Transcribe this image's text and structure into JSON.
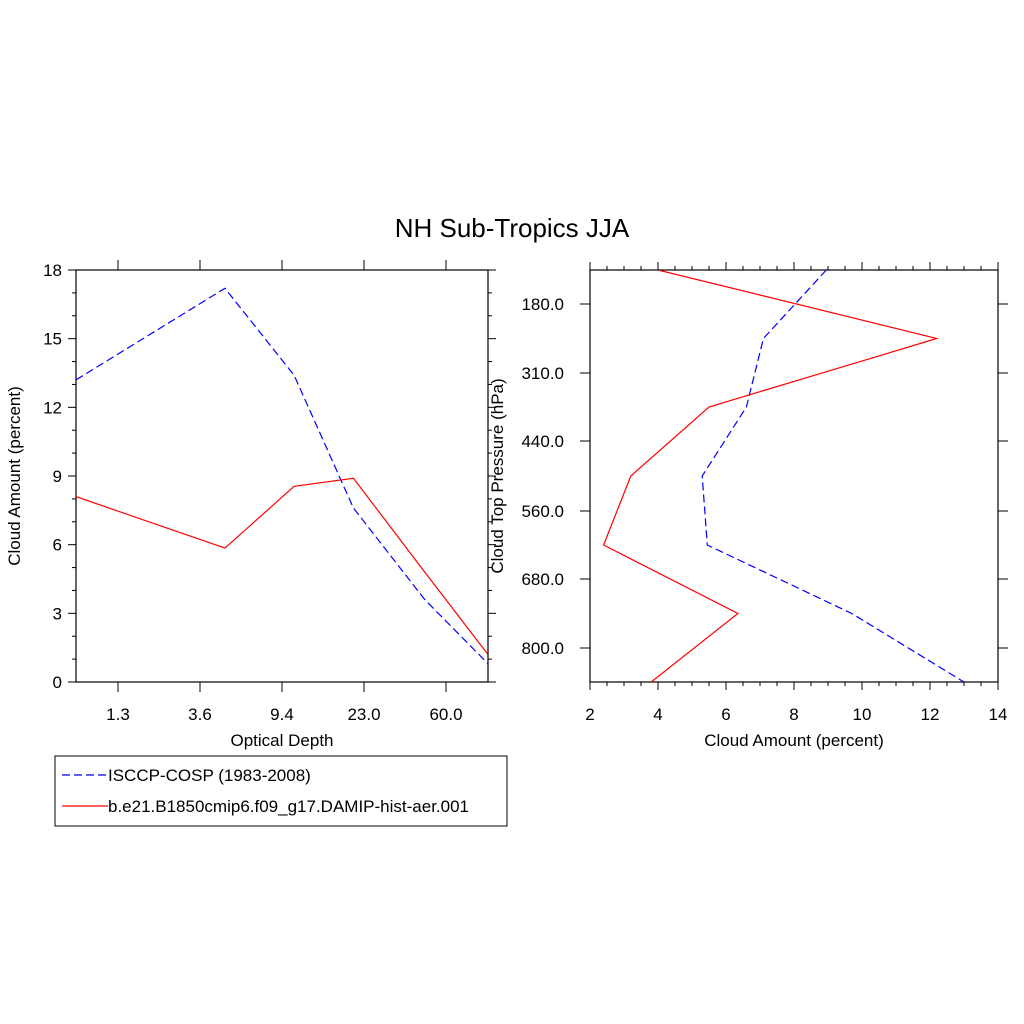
{
  "title": "NH Sub-Tropics JJA",
  "colors": {
    "obs": "#0000ff",
    "model": "#ff0000",
    "axes": "#000000"
  },
  "legend": {
    "entries": [
      {
        "label": "ISCCP-COSP (1983-2008)",
        "style": "dashed",
        "color": "#0000ff"
      },
      {
        "label": "b.e21.B1850cmip6.f09_g17.DAMIP-hist-aer.001",
        "style": "solid",
        "color": "#ff0000"
      }
    ]
  },
  "chart_data": [
    {
      "type": "line",
      "xlabel": "Optical Depth",
      "ylabel": "Cloud Amount (percent)",
      "x_ticks": [
        "1.3",
        "3.6",
        "9.4",
        "23.0",
        "60.0"
      ],
      "x": [
        0.3,
        2.45,
        6.5,
        15.0,
        41.0,
        100.0
      ],
      "ylim": [
        0,
        18
      ],
      "y_ticks": [
        0,
        3,
        6,
        9,
        12,
        15,
        18
      ],
      "series": [
        {
          "name": "ISCCP-COSP (1983-2008)",
          "style": "dashed",
          "color": "#0000ff",
          "values": [
            13.2,
            17.2,
            13.4,
            7.6,
            3.6,
            0.8
          ]
        },
        {
          "name": "b.e21.B1850cmip6.f09_g17.DAMIP-hist-aer.001",
          "style": "solid",
          "color": "#ff0000",
          "values": [
            8.1,
            5.85,
            8.55,
            8.9,
            4.8,
            1.2
          ]
        }
      ]
    },
    {
      "type": "line",
      "xlabel": "Cloud Amount (percent)",
      "ylabel": "Cloud Top Pressure (hPa)",
      "xlim": [
        2,
        14
      ],
      "x_ticks": [
        2,
        4,
        6,
        8,
        10,
        12,
        14
      ],
      "y_ticks": [
        "180.0",
        "310.0",
        "440.0",
        "560.0",
        "680.0",
        "800.0"
      ],
      "y": [
        50,
        245,
        375,
        500,
        620,
        740,
        900
      ],
      "series": [
        {
          "name": "ISCCP-COSP (1983-2008)",
          "style": "dashed",
          "color": "#0000ff",
          "values": [
            8.95,
            7.1,
            6.6,
            5.3,
            5.45,
            9.7,
            13.0
          ]
        },
        {
          "name": "b.e21.B1850cmip6.f09_g17.DAMIP-hist-aer.001",
          "style": "solid",
          "color": "#ff0000",
          "values": [
            4.0,
            12.2,
            5.5,
            3.2,
            2.4,
            6.35,
            3.8
          ]
        }
      ]
    }
  ]
}
